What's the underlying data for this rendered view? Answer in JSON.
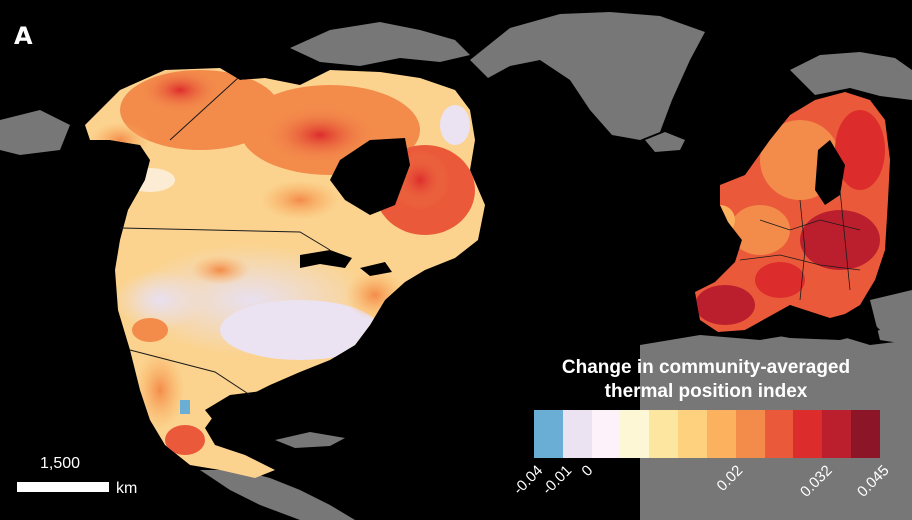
{
  "panel_label": "A",
  "legend": {
    "title_line1": "Change in community-averaged",
    "title_line2": "thermal position index",
    "colors": [
      "#6aaed6",
      "#ebe3f2",
      "#fdf1fa",
      "#fef7d5",
      "#fde6a0",
      "#fdd17d",
      "#fbb15e",
      "#f38b4b",
      "#ea5a3a",
      "#dd2c2c",
      "#bb1f2e",
      "#8c1628"
    ],
    "ticks": [
      "-0.04",
      "-0.01",
      "0",
      "0.02",
      "0.032",
      "0.045"
    ]
  },
  "scale_bar": {
    "value": "1,500",
    "unit": "km"
  },
  "colors": {
    "ocean": "#000000",
    "land_outside": "#777777",
    "borders": "#1a1a1a"
  }
}
